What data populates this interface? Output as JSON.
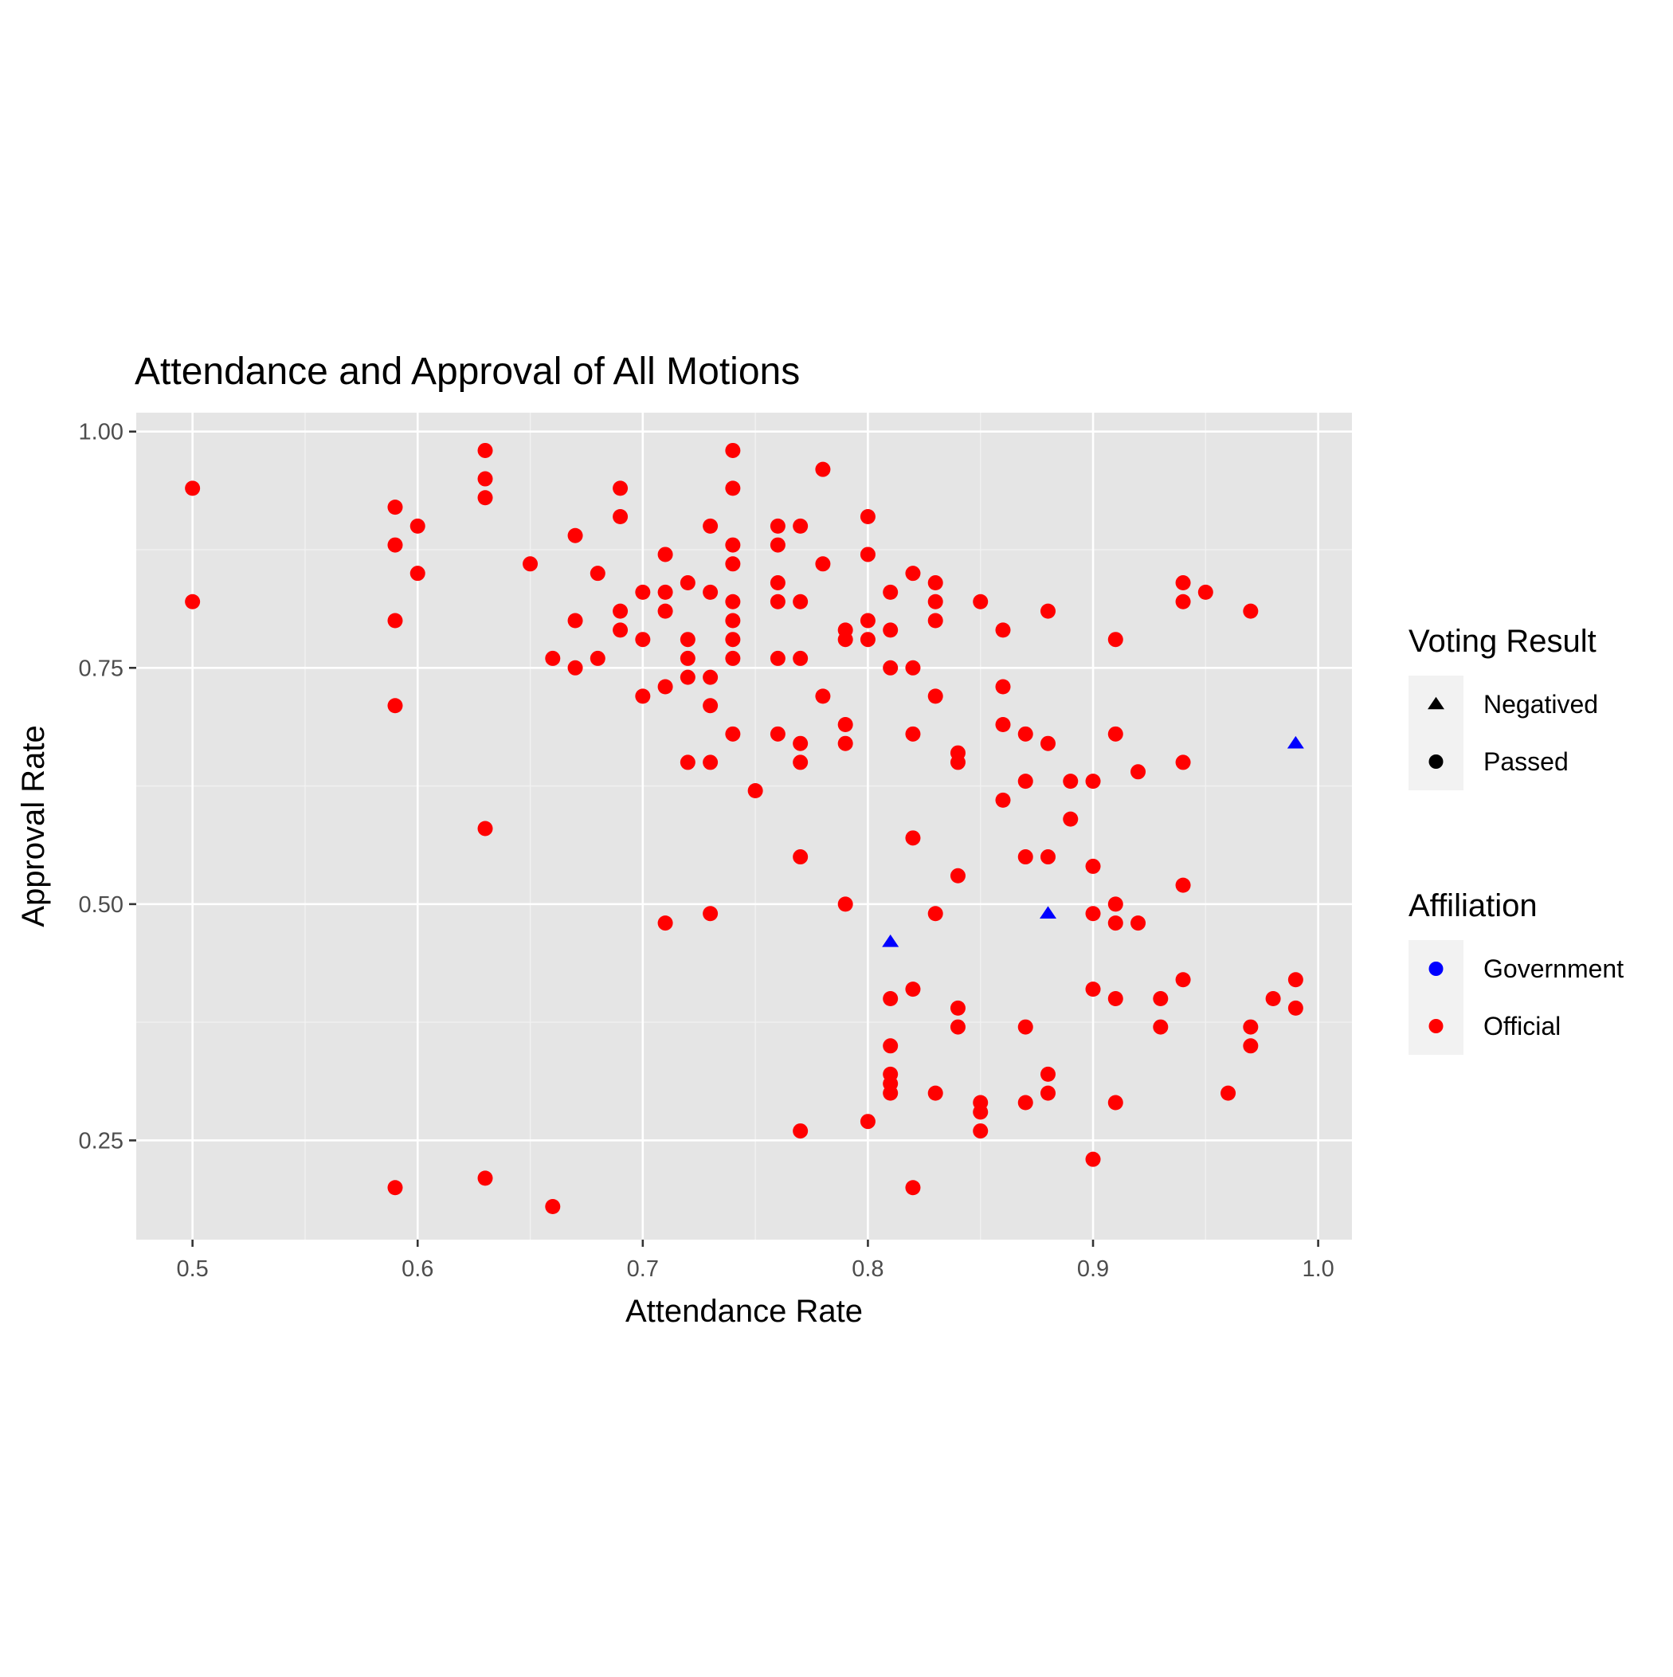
{
  "chart_data": {
    "type": "scatter",
    "title": "Attendance and Approval of All Motions",
    "xlabel": "Attendance Rate",
    "ylabel": "Approval Rate",
    "xlim": [
      0.475,
      1.015
    ],
    "ylim": [
      0.145,
      1.02
    ],
    "x_ticks": [
      {
        "value": 0.5,
        "label": "0.5"
      },
      {
        "value": 0.6,
        "label": "0.6"
      },
      {
        "value": 0.7,
        "label": "0.7"
      },
      {
        "value": 0.8,
        "label": "0.8"
      },
      {
        "value": 0.9,
        "label": "0.9"
      },
      {
        "value": 1.0,
        "label": "1.0"
      }
    ],
    "y_ticks": [
      {
        "value": 0.25,
        "label": "0.25"
      },
      {
        "value": 0.5,
        "label": "0.50"
      },
      {
        "value": 0.75,
        "label": "0.75"
      },
      {
        "value": 1.0,
        "label": "1.00"
      }
    ],
    "grid": true,
    "background": "#e5e5e5",
    "legend_position": "right",
    "legends": [
      {
        "title": "Voting Result",
        "items": [
          {
            "label": "Negatived",
            "shape": "triangle",
            "color": "#000000"
          },
          {
            "label": "Passed",
            "shape": "circle",
            "color": "#000000"
          }
        ]
      },
      {
        "title": "Affiliation",
        "items": [
          {
            "label": "Government",
            "shape": "circle",
            "color": "#0000ff"
          },
          {
            "label": "Official",
            "shape": "circle",
            "color": "#ff0000"
          }
        ]
      }
    ],
    "series": [
      {
        "name": "Government",
        "color": "#0000ff",
        "shape": "triangle",
        "points": [
          [
            0.81,
            0.46
          ],
          [
            0.88,
            0.49
          ],
          [
            0.99,
            0.67
          ]
        ]
      },
      {
        "name": "Official",
        "color": "#ff0000",
        "shape": "circle",
        "points": [
          [
            0.5,
            0.94
          ],
          [
            0.5,
            0.82
          ],
          [
            0.59,
            0.92
          ],
          [
            0.59,
            0.88
          ],
          [
            0.59,
            0.8
          ],
          [
            0.59,
            0.71
          ],
          [
            0.59,
            0.2
          ],
          [
            0.6,
            0.9
          ],
          [
            0.6,
            0.85
          ],
          [
            0.63,
            0.98
          ],
          [
            0.63,
            0.95
          ],
          [
            0.63,
            0.93
          ],
          [
            0.63,
            0.58
          ],
          [
            0.63,
            0.21
          ],
          [
            0.65,
            0.86
          ],
          [
            0.66,
            0.76
          ],
          [
            0.66,
            0.18
          ],
          [
            0.67,
            0.89
          ],
          [
            0.67,
            0.8
          ],
          [
            0.67,
            0.75
          ],
          [
            0.68,
            0.85
          ],
          [
            0.68,
            0.76
          ],
          [
            0.69,
            0.94
          ],
          [
            0.69,
            0.91
          ],
          [
            0.69,
            0.81
          ],
          [
            0.69,
            0.79
          ],
          [
            0.7,
            0.83
          ],
          [
            0.7,
            0.78
          ],
          [
            0.7,
            0.72
          ],
          [
            0.71,
            0.87
          ],
          [
            0.71,
            0.83
          ],
          [
            0.71,
            0.81
          ],
          [
            0.71,
            0.73
          ],
          [
            0.71,
            0.48
          ],
          [
            0.72,
            0.84
          ],
          [
            0.72,
            0.78
          ],
          [
            0.72,
            0.76
          ],
          [
            0.72,
            0.74
          ],
          [
            0.72,
            0.65
          ],
          [
            0.73,
            0.9
          ],
          [
            0.73,
            0.83
          ],
          [
            0.73,
            0.74
          ],
          [
            0.73,
            0.71
          ],
          [
            0.73,
            0.65
          ],
          [
            0.73,
            0.49
          ],
          [
            0.74,
            0.98
          ],
          [
            0.74,
            0.94
          ],
          [
            0.74,
            0.88
          ],
          [
            0.74,
            0.86
          ],
          [
            0.74,
            0.82
          ],
          [
            0.74,
            0.8
          ],
          [
            0.74,
            0.78
          ],
          [
            0.74,
            0.76
          ],
          [
            0.74,
            0.68
          ],
          [
            0.75,
            0.62
          ],
          [
            0.76,
            0.9
          ],
          [
            0.76,
            0.88
          ],
          [
            0.76,
            0.84
          ],
          [
            0.76,
            0.82
          ],
          [
            0.76,
            0.76
          ],
          [
            0.76,
            0.68
          ],
          [
            0.77,
            0.9
          ],
          [
            0.77,
            0.82
          ],
          [
            0.77,
            0.76
          ],
          [
            0.77,
            0.67
          ],
          [
            0.77,
            0.65
          ],
          [
            0.77,
            0.55
          ],
          [
            0.77,
            0.26
          ],
          [
            0.78,
            0.96
          ],
          [
            0.78,
            0.86
          ],
          [
            0.78,
            0.72
          ],
          [
            0.79,
            0.79
          ],
          [
            0.79,
            0.78
          ],
          [
            0.79,
            0.69
          ],
          [
            0.79,
            0.67
          ],
          [
            0.79,
            0.5
          ],
          [
            0.8,
            0.91
          ],
          [
            0.8,
            0.87
          ],
          [
            0.8,
            0.8
          ],
          [
            0.8,
            0.78
          ],
          [
            0.8,
            0.27
          ],
          [
            0.81,
            0.83
          ],
          [
            0.81,
            0.79
          ],
          [
            0.81,
            0.75
          ],
          [
            0.81,
            0.4
          ],
          [
            0.81,
            0.35
          ],
          [
            0.81,
            0.32
          ],
          [
            0.81,
            0.31
          ],
          [
            0.81,
            0.3
          ],
          [
            0.82,
            0.85
          ],
          [
            0.82,
            0.75
          ],
          [
            0.82,
            0.68
          ],
          [
            0.82,
            0.57
          ],
          [
            0.82,
            0.41
          ],
          [
            0.82,
            0.2
          ],
          [
            0.83,
            0.84
          ],
          [
            0.83,
            0.82
          ],
          [
            0.83,
            0.8
          ],
          [
            0.83,
            0.72
          ],
          [
            0.83,
            0.49
          ],
          [
            0.83,
            0.3
          ],
          [
            0.84,
            0.66
          ],
          [
            0.84,
            0.65
          ],
          [
            0.84,
            0.53
          ],
          [
            0.84,
            0.39
          ],
          [
            0.84,
            0.37
          ],
          [
            0.85,
            0.82
          ],
          [
            0.85,
            0.29
          ],
          [
            0.85,
            0.28
          ],
          [
            0.85,
            0.26
          ],
          [
            0.86,
            0.79
          ],
          [
            0.86,
            0.73
          ],
          [
            0.86,
            0.69
          ],
          [
            0.86,
            0.61
          ],
          [
            0.87,
            0.68
          ],
          [
            0.87,
            0.63
          ],
          [
            0.87,
            0.55
          ],
          [
            0.87,
            0.37
          ],
          [
            0.87,
            0.29
          ],
          [
            0.88,
            0.81
          ],
          [
            0.88,
            0.67
          ],
          [
            0.88,
            0.55
          ],
          [
            0.88,
            0.32
          ],
          [
            0.88,
            0.3
          ],
          [
            0.89,
            0.63
          ],
          [
            0.89,
            0.59
          ],
          [
            0.9,
            0.63
          ],
          [
            0.9,
            0.54
          ],
          [
            0.9,
            0.49
          ],
          [
            0.9,
            0.41
          ],
          [
            0.9,
            0.23
          ],
          [
            0.91,
            0.78
          ],
          [
            0.91,
            0.68
          ],
          [
            0.91,
            0.5
          ],
          [
            0.91,
            0.48
          ],
          [
            0.91,
            0.4
          ],
          [
            0.91,
            0.29
          ],
          [
            0.92,
            0.64
          ],
          [
            0.92,
            0.48
          ],
          [
            0.93,
            0.4
          ],
          [
            0.93,
            0.37
          ],
          [
            0.94,
            0.84
          ],
          [
            0.94,
            0.82
          ],
          [
            0.94,
            0.65
          ],
          [
            0.94,
            0.52
          ],
          [
            0.94,
            0.42
          ],
          [
            0.95,
            0.83
          ],
          [
            0.96,
            0.3
          ],
          [
            0.97,
            0.81
          ],
          [
            0.97,
            0.37
          ],
          [
            0.97,
            0.35
          ],
          [
            0.98,
            0.4
          ],
          [
            0.99,
            0.42
          ],
          [
            0.99,
            0.39
          ]
        ]
      }
    ]
  }
}
